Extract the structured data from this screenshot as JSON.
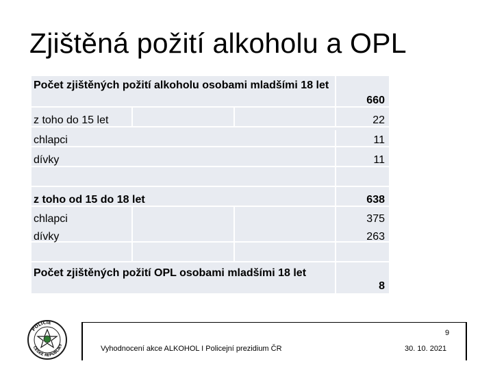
{
  "slide": {
    "title": "Zjištěná požití alkoholu a OPL"
  },
  "table": {
    "rows": [
      {
        "label": "Počet zjištěných požití alkoholu osobami mladšími 18 let",
        "value": "660"
      },
      {
        "label": "z toho do 15 let",
        "value": "22"
      },
      {
        "label": "chlapci",
        "value": "11"
      },
      {
        "label": "dívky",
        "value": "11"
      },
      {
        "label": "z toho od 15 do 18 let",
        "value": "638"
      },
      {
        "label": "chlapci",
        "value": "375"
      },
      {
        "label": "dívky",
        "value": "263"
      },
      {
        "label": "Počet zjištěných požití OPL osobami mladšími 18 let",
        "value": "8"
      }
    ]
  },
  "footer": {
    "page_number": "9",
    "source": "Vyhodnocení akce ALKOHOL I Policejní prezidium ČR",
    "date": "30. 10. 2021"
  },
  "logo": {
    "icon": "police-badge-icon",
    "text": "POLICIE ČESKÉ REPUBLIKY"
  }
}
